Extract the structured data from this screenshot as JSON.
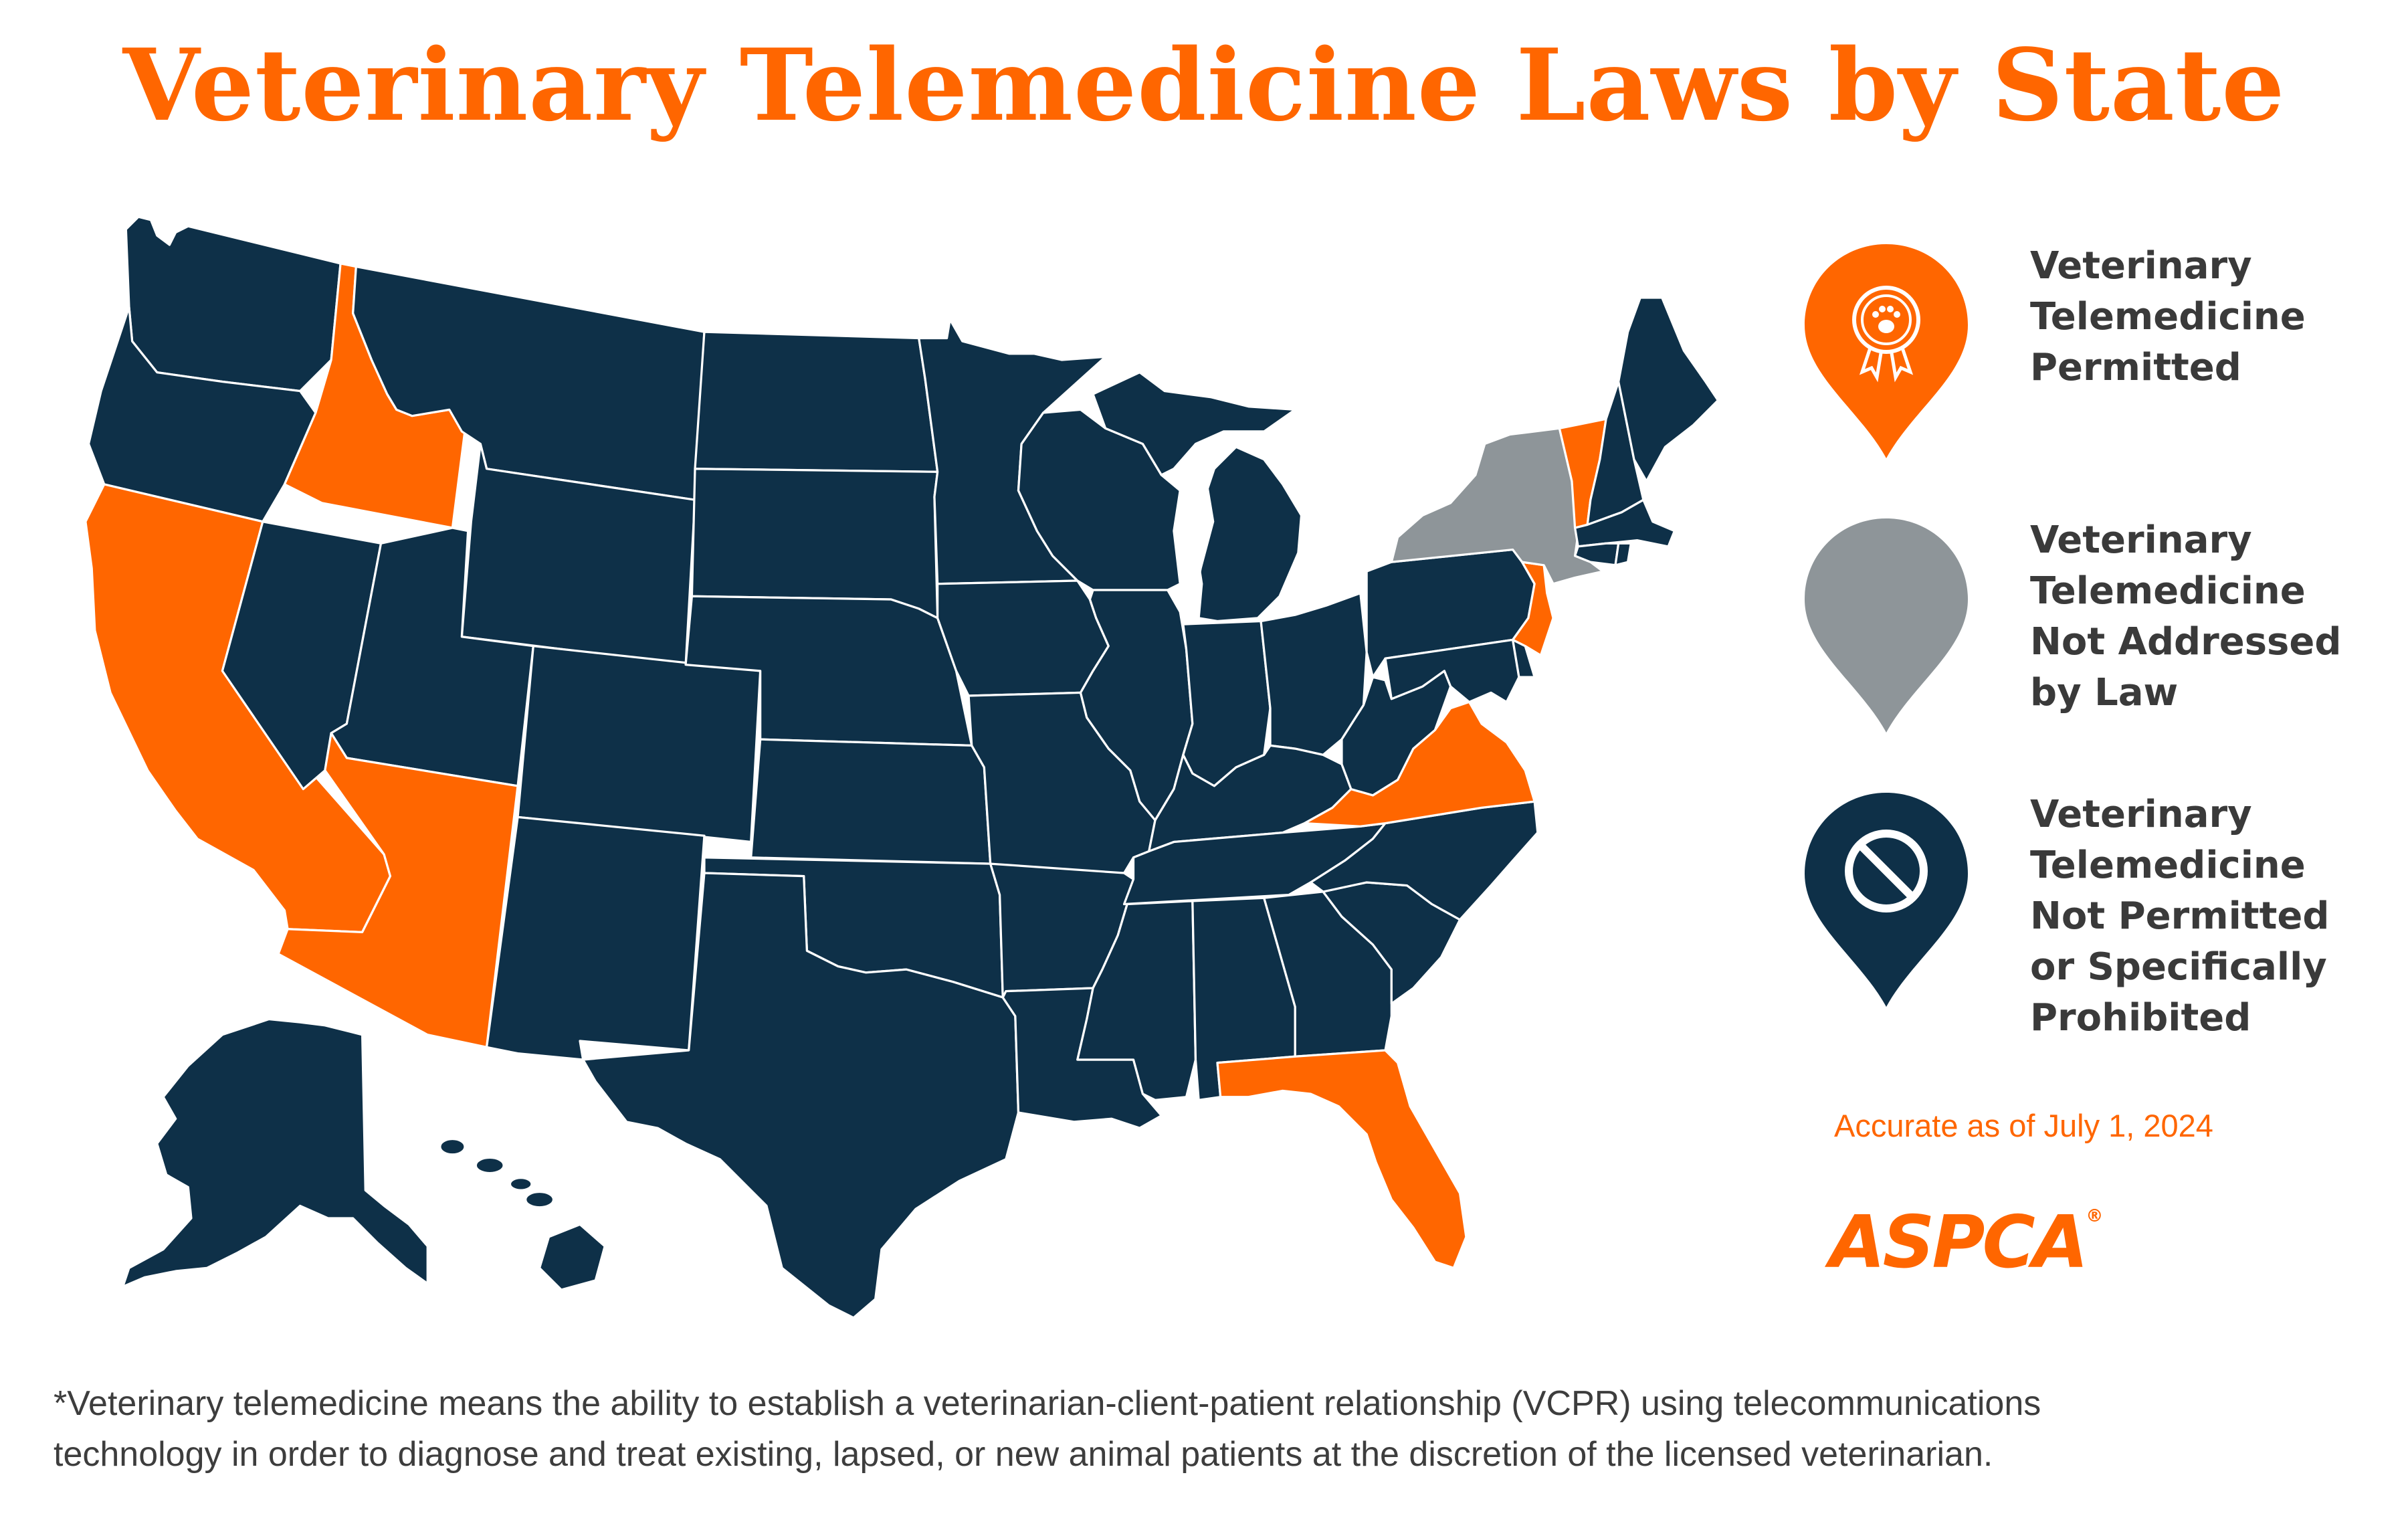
{
  "title": "Veterinary Telemedicine Laws by State",
  "colors": {
    "permitted": "#ff6600",
    "not_addressed": "#8e9599",
    "not_permitted": "#0e3048",
    "accent": "#ff6600",
    "text": "#3a3a3a"
  },
  "legend": [
    {
      "category": "permitted",
      "icon": "award-ribbon-paw-icon",
      "lines": [
        "Veterinary",
        "Telemedicine",
        "Permitted"
      ]
    },
    {
      "category": "not_addressed",
      "icon": "empty-pin-icon",
      "lines": [
        "Veterinary",
        "Telemedicine",
        "Not Addressed",
        "by Law"
      ]
    },
    {
      "category": "not_permitted",
      "icon": "prohibited-icon",
      "lines": [
        "Veterinary",
        "Telemedicine",
        "Not Permitted",
        "or Specifically",
        "Prohibited"
      ]
    }
  ],
  "accurate_date": "Accurate as of July 1, 2024",
  "logo": {
    "text": "ASPCA",
    "mark": "®"
  },
  "footnote": {
    "lines": [
      "*Veterinary telemedicine means the ability to establish a veterinarian-client-patient relationship (VCPR) using telecommunications",
      "technology in order to diagnose and treat existing, lapsed, or new animal patients at the discretion of the licensed veterinarian."
    ]
  },
  "states_permitted": [
    "Idaho",
    "California",
    "Arizona",
    "Vermont",
    "New Jersey",
    "Virginia",
    "Florida"
  ],
  "states_not_addressed": [
    "New York"
  ]
}
